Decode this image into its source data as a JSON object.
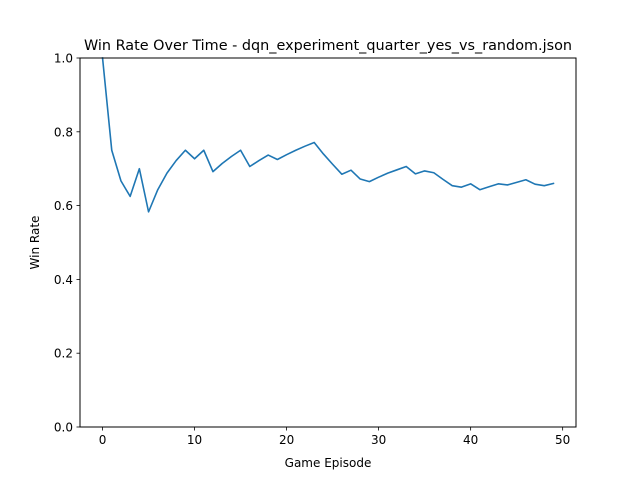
{
  "chart_data": {
    "type": "line",
    "title": "Win Rate Over Time - dqn_experiment_quarter_yes_vs_random.json",
    "xlabel": "Game Episode",
    "ylabel": "Win Rate",
    "xlim": [
      -2.45,
      51.45
    ],
    "ylim": [
      0.0,
      1.0
    ],
    "x_ticks": [
      0,
      10,
      20,
      30,
      40,
      50
    ],
    "y_ticks": [
      0.0,
      0.2,
      0.4,
      0.6,
      0.8,
      1.0
    ],
    "x_tick_labels": [
      "0",
      "10",
      "20",
      "30",
      "40",
      "50"
    ],
    "y_tick_labels": [
      "0.0",
      "0.2",
      "0.4",
      "0.6",
      "0.8",
      "1.0"
    ],
    "grid": false,
    "legend": "none",
    "series": [
      {
        "color": "#1f77b4",
        "x": [
          0,
          1,
          2,
          3,
          4,
          5,
          6,
          7,
          8,
          9,
          10,
          11,
          12,
          13,
          14,
          15,
          16,
          17,
          18,
          19,
          20,
          21,
          22,
          23,
          24,
          25,
          26,
          27,
          28,
          29,
          30,
          31,
          32,
          33,
          34,
          35,
          36,
          37,
          38,
          39,
          40,
          41,
          42,
          43,
          44,
          45,
          46,
          47,
          48,
          49
        ],
        "values": [
          1.0,
          0.75,
          0.667,
          0.625,
          0.7,
          0.583,
          0.643,
          0.688,
          0.722,
          0.75,
          0.727,
          0.75,
          0.692,
          0.714,
          0.733,
          0.75,
          0.706,
          0.722,
          0.737,
          0.725,
          0.738,
          0.75,
          0.761,
          0.771,
          0.74,
          0.712,
          0.685,
          0.696,
          0.672,
          0.665,
          0.677,
          0.688,
          0.697,
          0.706,
          0.686,
          0.694,
          0.689,
          0.671,
          0.654,
          0.65,
          0.659,
          0.643,
          0.651,
          0.659,
          0.656,
          0.663,
          0.67,
          0.658,
          0.654,
          0.66
        ]
      }
    ]
  }
}
